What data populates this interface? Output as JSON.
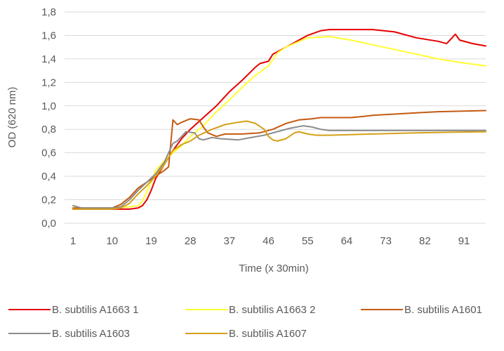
{
  "chart_data": {
    "type": "line",
    "title": "",
    "xlabel": "Time (x 30min)",
    "ylabel": "OD  (620 nm)",
    "xlim": [
      1,
      96
    ],
    "ylim": [
      0,
      1.8
    ],
    "x_ticks": [
      "1",
      "10",
      "19",
      "28",
      "37",
      "46",
      "55",
      "64",
      "73",
      "82",
      "91"
    ],
    "y_ticks": [
      "0,0",
      "0,2",
      "0,4",
      "0,6",
      "0,8",
      "1,0",
      "1,2",
      "1,4",
      "1,6",
      "1,8"
    ],
    "grid": true,
    "legend_position": "bottom",
    "series": [
      {
        "name": "B. subtilis A1663 1",
        "color": "#e60000",
        "points": [
          [
            1,
            0.12
          ],
          [
            5,
            0.12
          ],
          [
            10,
            0.12
          ],
          [
            14,
            0.12
          ],
          [
            16,
            0.13
          ],
          [
            17,
            0.15
          ],
          [
            18,
            0.2
          ],
          [
            19,
            0.28
          ],
          [
            20,
            0.38
          ],
          [
            22,
            0.5
          ],
          [
            24,
            0.62
          ],
          [
            26,
            0.72
          ],
          [
            28,
            0.8
          ],
          [
            31,
            0.9
          ],
          [
            34,
            1.0
          ],
          [
            37,
            1.12
          ],
          [
            40,
            1.22
          ],
          [
            43,
            1.33
          ],
          [
            44,
            1.36
          ],
          [
            46,
            1.38
          ],
          [
            47,
            1.44
          ],
          [
            50,
            1.5
          ],
          [
            52,
            1.54
          ],
          [
            55,
            1.6
          ],
          [
            58,
            1.64
          ],
          [
            60,
            1.65
          ],
          [
            65,
            1.65
          ],
          [
            70,
            1.65
          ],
          [
            75,
            1.63
          ],
          [
            80,
            1.58
          ],
          [
            85,
            1.55
          ],
          [
            87,
            1.53
          ],
          [
            89,
            1.61
          ],
          [
            90,
            1.56
          ],
          [
            93,
            1.53
          ],
          [
            96,
            1.51
          ]
        ]
      },
      {
        "name": "B. subtilis A1663 2",
        "color": "#ffff33",
        "points": [
          [
            1,
            0.13
          ],
          [
            5,
            0.13
          ],
          [
            10,
            0.13
          ],
          [
            14,
            0.14
          ],
          [
            16,
            0.15
          ],
          [
            17,
            0.19
          ],
          [
            18,
            0.27
          ],
          [
            19,
            0.35
          ],
          [
            20,
            0.45
          ],
          [
            22,
            0.53
          ],
          [
            24,
            0.6
          ],
          [
            26,
            0.66
          ],
          [
            28,
            0.74
          ],
          [
            31,
            0.83
          ],
          [
            34,
            0.95
          ],
          [
            37,
            1.05
          ],
          [
            40,
            1.16
          ],
          [
            43,
            1.26
          ],
          [
            46,
            1.34
          ],
          [
            48,
            1.45
          ],
          [
            50,
            1.5
          ],
          [
            55,
            1.58
          ],
          [
            60,
            1.59
          ],
          [
            65,
            1.56
          ],
          [
            70,
            1.52
          ],
          [
            75,
            1.48
          ],
          [
            80,
            1.44
          ],
          [
            85,
            1.4
          ],
          [
            90,
            1.37
          ],
          [
            96,
            1.34
          ]
        ]
      },
      {
        "name": "B. subtilis A1601",
        "color": "#c55a11",
        "points": [
          [
            1,
            0.13
          ],
          [
            5,
            0.13
          ],
          [
            10,
            0.13
          ],
          [
            12,
            0.16
          ],
          [
            14,
            0.22
          ],
          [
            16,
            0.3
          ],
          [
            18,
            0.35
          ],
          [
            20,
            0.4
          ],
          [
            22,
            0.45
          ],
          [
            23,
            0.48
          ],
          [
            24,
            0.88
          ],
          [
            25,
            0.84
          ],
          [
            26,
            0.86
          ],
          [
            28,
            0.89
          ],
          [
            30,
            0.88
          ],
          [
            31,
            0.82
          ],
          [
            32,
            0.77
          ],
          [
            34,
            0.74
          ],
          [
            36,
            0.76
          ],
          [
            40,
            0.76
          ],
          [
            44,
            0.77
          ],
          [
            47,
            0.8
          ],
          [
            50,
            0.85
          ],
          [
            53,
            0.88
          ],
          [
            56,
            0.89
          ],
          [
            58,
            0.9
          ],
          [
            65,
            0.9
          ],
          [
            68,
            0.91
          ],
          [
            70,
            0.92
          ],
          [
            75,
            0.93
          ],
          [
            80,
            0.94
          ],
          [
            85,
            0.95
          ],
          [
            96,
            0.96
          ]
        ]
      },
      {
        "name": "B. subtilis A1603",
        "color": "#8c8c8c",
        "points": [
          [
            1,
            0.15
          ],
          [
            3,
            0.13
          ],
          [
            10,
            0.13
          ],
          [
            12,
            0.14
          ],
          [
            14,
            0.2
          ],
          [
            16,
            0.28
          ],
          [
            18,
            0.35
          ],
          [
            20,
            0.42
          ],
          [
            22,
            0.52
          ],
          [
            24,
            0.68
          ],
          [
            25,
            0.7
          ],
          [
            26,
            0.74
          ],
          [
            27,
            0.78
          ],
          [
            29,
            0.77
          ],
          [
            30,
            0.72
          ],
          [
            31,
            0.71
          ],
          [
            33,
            0.73
          ],
          [
            35,
            0.72
          ],
          [
            39,
            0.71
          ],
          [
            42,
            0.73
          ],
          [
            45,
            0.75
          ],
          [
            48,
            0.78
          ],
          [
            51,
            0.81
          ],
          [
            54,
            0.83
          ],
          [
            56,
            0.82
          ],
          [
            58,
            0.8
          ],
          [
            60,
            0.79
          ],
          [
            96,
            0.79
          ]
        ]
      },
      {
        "name": "B. subtilis A1607",
        "color": "#d4a017",
        "points": [
          [
            1,
            0.12
          ],
          [
            5,
            0.12
          ],
          [
            10,
            0.12
          ],
          [
            12,
            0.13
          ],
          [
            14,
            0.17
          ],
          [
            16,
            0.25
          ],
          [
            18,
            0.32
          ],
          [
            20,
            0.4
          ],
          [
            22,
            0.5
          ],
          [
            24,
            0.62
          ],
          [
            26,
            0.67
          ],
          [
            28,
            0.7
          ],
          [
            30,
            0.75
          ],
          [
            33,
            0.8
          ],
          [
            36,
            0.84
          ],
          [
            39,
            0.86
          ],
          [
            41,
            0.87
          ],
          [
            43,
            0.85
          ],
          [
            45,
            0.8
          ],
          [
            46,
            0.74
          ],
          [
            47,
            0.71
          ],
          [
            48,
            0.7
          ],
          [
            50,
            0.72
          ],
          [
            52,
            0.77
          ],
          [
            53,
            0.78
          ],
          [
            55,
            0.76
          ],
          [
            57,
            0.75
          ],
          [
            60,
            0.75
          ],
          [
            70,
            0.76
          ],
          [
            80,
            0.77
          ],
          [
            96,
            0.78
          ]
        ]
      }
    ]
  }
}
